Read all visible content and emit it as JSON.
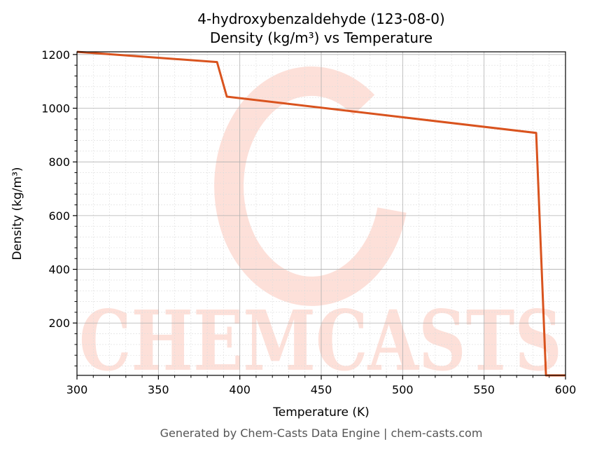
{
  "chart_data": {
    "type": "line",
    "title_line1": "4-hydroxybenzaldehyde (123-08-0)",
    "title_line2": "Density (kg/m³) vs Temperature",
    "xlabel": "Temperature (K)",
    "ylabel": "Density (kg/m³)",
    "xlim": [
      300,
      600
    ],
    "ylim": [
      5,
      1210
    ],
    "x_ticks": [
      300,
      350,
      400,
      450,
      500,
      550,
      600
    ],
    "y_ticks": [
      200,
      400,
      600,
      800,
      1000,
      1200
    ],
    "grid": true,
    "series": [
      {
        "color": "#d9531e",
        "x": [
          300,
          386,
          392,
          582,
          588,
          600
        ],
        "y": [
          1210,
          1172,
          1043,
          908,
          5,
          5
        ]
      }
    ]
  },
  "watermark": {
    "text": "CHEMCASTS",
    "color": "#fde0d9"
  },
  "footer": "Generated by Chem-Casts Data Engine | chem-casts.com"
}
